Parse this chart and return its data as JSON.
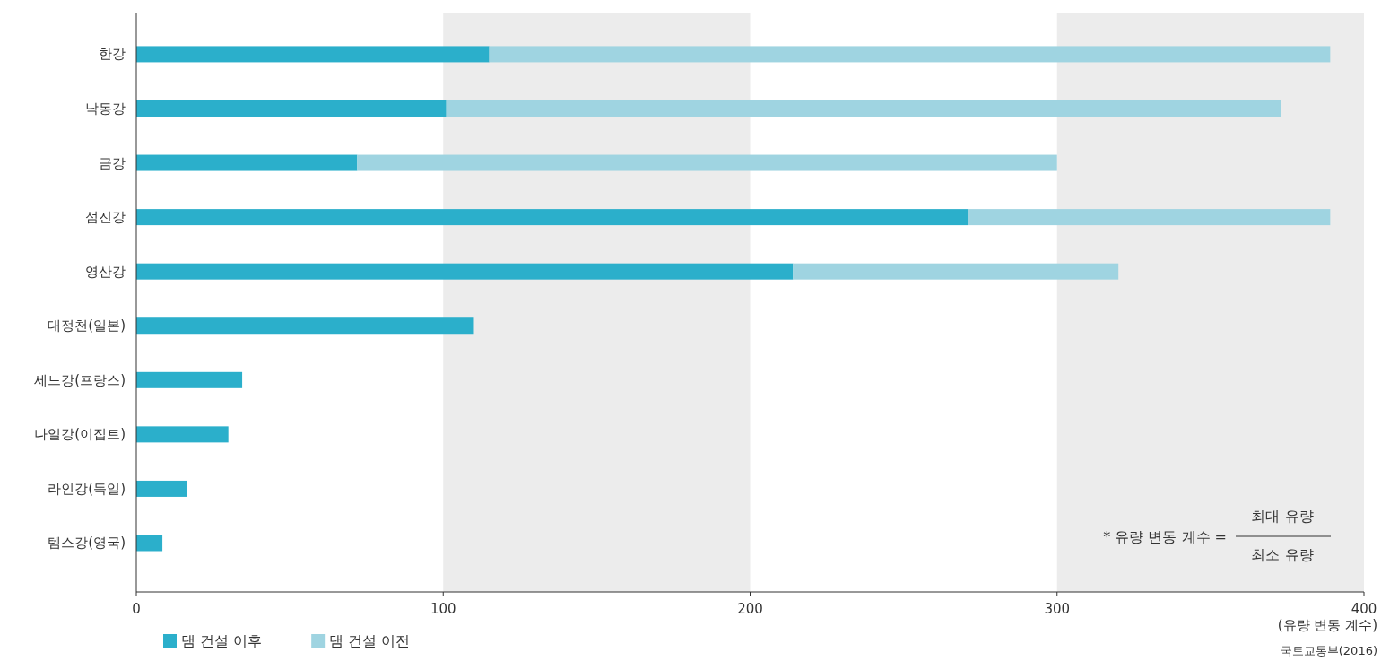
{
  "chart_data": {
    "type": "bar",
    "orientation": "horizontal",
    "stacked": true,
    "categories": [
      "한강",
      "낙동강",
      "금강",
      "섬진강",
      "영산강",
      "대정천(일본)",
      "세느강(프랑스)",
      "나일강(이집트)",
      "라인강(독일)",
      "템스강(영국)"
    ],
    "series": [
      {
        "name": "댐 건설 이후",
        "color": "#2bafcb",
        "values": [
          115,
          101,
          72,
          271,
          214,
          110,
          34.5,
          30,
          16.5,
          8.5
        ]
      },
      {
        "name": "댐 건설 이전",
        "color": "#9fd4e1",
        "values": [
          274,
          272,
          228,
          118,
          106,
          null,
          null,
          null,
          null,
          null
        ]
      }
    ],
    "xlim": [
      0,
      400
    ],
    "xticks": [
      0,
      100,
      200,
      300,
      400
    ],
    "xlabel": "(유량 변동 계수)",
    "grid": false,
    "legend": "bottom left",
    "bands": [
      {
        "axis": "x",
        "from": 100,
        "to": 200,
        "color": "#ececec"
      },
      {
        "axis": "x",
        "from": 300,
        "to": 400,
        "color": "#ececec"
      }
    ],
    "annotations": [
      "* 유량 변동 계수 =",
      "최대 유량",
      "최소 유량",
      "국토교통부(2016)"
    ]
  }
}
